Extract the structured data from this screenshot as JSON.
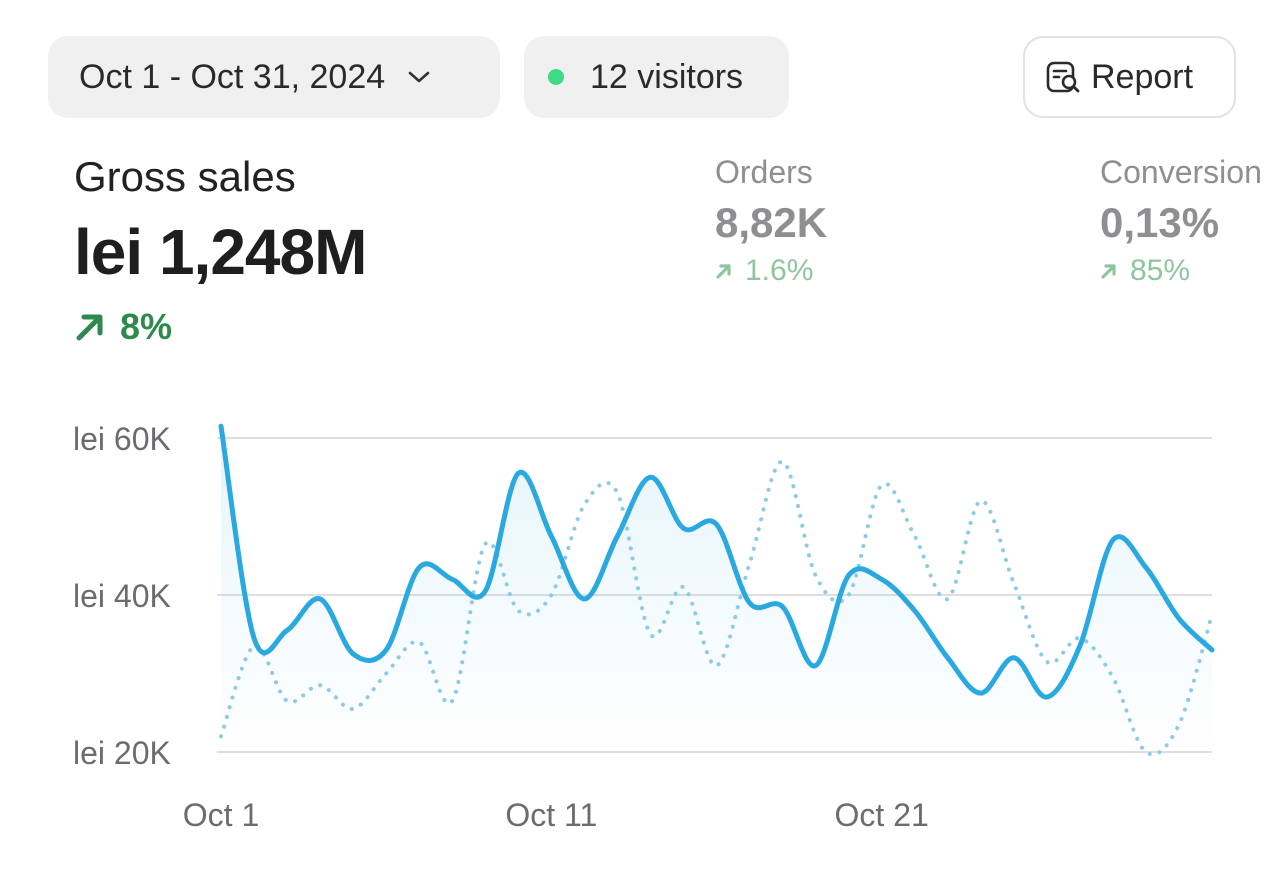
{
  "toolbar": {
    "date_range": "Oct 1 - Oct 31, 2024",
    "visitors": "12 visitors",
    "report_label": "Report",
    "status_color": "#3ddc84"
  },
  "metrics": {
    "gross_sales": {
      "label": "Gross sales",
      "value": "lei 1,248M",
      "delta": "8%",
      "trend": "up"
    },
    "orders": {
      "label": "Orders",
      "value": "8,82K",
      "delta": "1.6%",
      "trend": "up"
    },
    "conversion": {
      "label": "Conversion",
      "value": "0,13%",
      "delta": "85%",
      "trend": "up"
    }
  },
  "chart_data": {
    "type": "line",
    "x": [
      1,
      2,
      3,
      4,
      5,
      6,
      7,
      8,
      9,
      10,
      11,
      12,
      13,
      14,
      15,
      16,
      17,
      18,
      19,
      20,
      21,
      22,
      23,
      24,
      25,
      26,
      27,
      28,
      29,
      30,
      31
    ],
    "x_tick_labels": [
      {
        "x": 1,
        "label": "Oct 1"
      },
      {
        "x": 11,
        "label": "Oct 11"
      },
      {
        "x": 21,
        "label": "Oct 21"
      }
    ],
    "ylim": [
      20000,
      60000
    ],
    "y_ticks": [
      20000,
      40000,
      60000
    ],
    "y_tick_labels": [
      "lei 20K",
      "lei 40K",
      "lei 60K"
    ],
    "grid": true,
    "series": [
      {
        "style": "solid",
        "color": "#2aa8e0",
        "values": [
          61500,
          34500,
          35500,
          39500,
          32500,
          33000,
          43500,
          42000,
          40500,
          55500,
          47500,
          39500,
          47500,
          55000,
          48500,
          49000,
          39000,
          38500,
          31000,
          42500,
          42000,
          38000,
          32000,
          27500,
          32000,
          27000,
          33500,
          47000,
          43500,
          37000,
          33000
        ]
      },
      {
        "style": "dotted",
        "color": "#8ccbe6",
        "values": [
          22000,
          33500,
          26500,
          28500,
          25500,
          30000,
          34000,
          26500,
          46500,
          38000,
          40000,
          51500,
          53000,
          35000,
          41000,
          31000,
          44000,
          57000,
          42500,
          40000,
          54000,
          47500,
          39500,
          52000,
          41500,
          31500,
          34500,
          29500,
          20000,
          23500,
          37500
        ]
      }
    ]
  }
}
